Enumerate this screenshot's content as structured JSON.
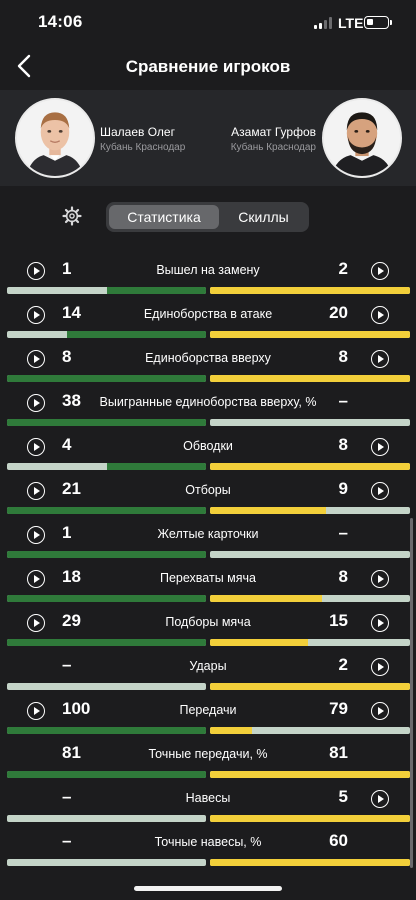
{
  "status_bar": {
    "time": "14:06",
    "network": "LTE"
  },
  "nav": {
    "title": "Сравнение игроков",
    "back_icon": "chevron-left-icon"
  },
  "players": {
    "left": {
      "name": "Шалаев Олег",
      "team": "Кубань Краснодар"
    },
    "right": {
      "name": "Азамат Гурфов",
      "team": "Кубань Краснодар"
    }
  },
  "tabs": {
    "settings_icon": "gear-icon",
    "active": "Статистика",
    "items": [
      "Статистика",
      "Скиллы"
    ]
  },
  "colors": {
    "left_bar": "#2f7a3a",
    "right_bar": "#f2cf3a",
    "bar_bg": "#c4d4c8",
    "background": "#1c1c1e"
  },
  "stats": [
    {
      "label": "Вышел на замену",
      "left": "1",
      "right": "2",
      "left_play": true,
      "right_play": true,
      "left_fill": 0.5,
      "right_fill": 1.0
    },
    {
      "label": "Единоборства в атаке",
      "left": "14",
      "right": "20",
      "left_play": true,
      "right_play": true,
      "left_fill": 0.7,
      "right_fill": 1.0
    },
    {
      "label": "Единоборства вверху",
      "left": "8",
      "right": "8",
      "left_play": true,
      "right_play": true,
      "left_fill": 1.0,
      "right_fill": 1.0
    },
    {
      "label": "Выигранные единоборства вверху, %",
      "left": "38",
      "right": "–",
      "left_play": true,
      "right_play": false,
      "left_fill": 1.0,
      "right_fill": 0.0
    },
    {
      "label": "Обводки",
      "left": "4",
      "right": "8",
      "left_play": true,
      "right_play": true,
      "left_fill": 0.5,
      "right_fill": 1.0
    },
    {
      "label": "Отборы",
      "left": "21",
      "right": "9",
      "left_play": true,
      "right_play": true,
      "left_fill": 1.0,
      "right_fill": 0.58
    },
    {
      "label": "Желтые карточки",
      "left": "1",
      "right": "–",
      "left_play": true,
      "right_play": false,
      "left_fill": 1.0,
      "right_fill": 0.0
    },
    {
      "label": "Перехваты мяча",
      "left": "18",
      "right": "8",
      "left_play": true,
      "right_play": true,
      "left_fill": 1.0,
      "right_fill": 0.56
    },
    {
      "label": "Подборы мяча",
      "left": "29",
      "right": "15",
      "left_play": true,
      "right_play": true,
      "left_fill": 1.0,
      "right_fill": 0.49
    },
    {
      "label": "Удары",
      "left": "–",
      "right": "2",
      "left_play": false,
      "right_play": true,
      "left_fill": 0.0,
      "right_fill": 1.0
    },
    {
      "label": "Передачи",
      "left": "100",
      "right": "79",
      "left_play": true,
      "right_play": true,
      "left_fill": 1.0,
      "right_fill": 0.21
    },
    {
      "label": "Точные передачи, %",
      "left": "81",
      "right": "81",
      "left_play": false,
      "right_play": false,
      "left_fill": 1.0,
      "right_fill": 1.0
    },
    {
      "label": "Навесы",
      "left": "–",
      "right": "5",
      "left_play": false,
      "right_play": true,
      "left_fill": 0.0,
      "right_fill": 1.0
    },
    {
      "label": "Точные навесы, %",
      "left": "–",
      "right": "60",
      "left_play": false,
      "right_play": false,
      "left_fill": 0.0,
      "right_fill": 1.0
    }
  ]
}
